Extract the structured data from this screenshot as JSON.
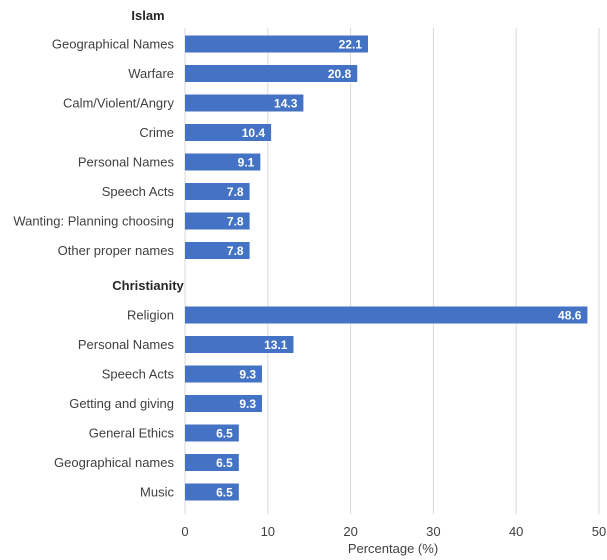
{
  "chart_data": {
    "type": "bar",
    "orientation": "horizontal",
    "xlabel": "Percentage (%)",
    "xlim": [
      0,
      50
    ],
    "xticks": [
      "0",
      "10",
      "20",
      "30",
      "40",
      "50"
    ],
    "grid": true,
    "bar_color": "#4472c4",
    "groups": [
      {
        "title": "Islam",
        "categories": [
          "Geographical Names",
          "Warfare",
          "Calm/Violent/Angry",
          "Crime",
          "Personal Names",
          "Speech Acts",
          "Wanting: Planning choosing",
          "Other proper names"
        ],
        "values": [
          22.1,
          20.8,
          14.3,
          10.4,
          9.1,
          7.8,
          7.8,
          7.8
        ]
      },
      {
        "title": "Christianity",
        "categories": [
          "Religion",
          "Personal Names",
          "Speech Acts",
          "Getting and giving",
          "General Ethics",
          "Geographical names",
          "Music"
        ],
        "values": [
          48.6,
          13.1,
          9.3,
          9.3,
          6.5,
          6.5,
          6.5
        ]
      }
    ]
  }
}
